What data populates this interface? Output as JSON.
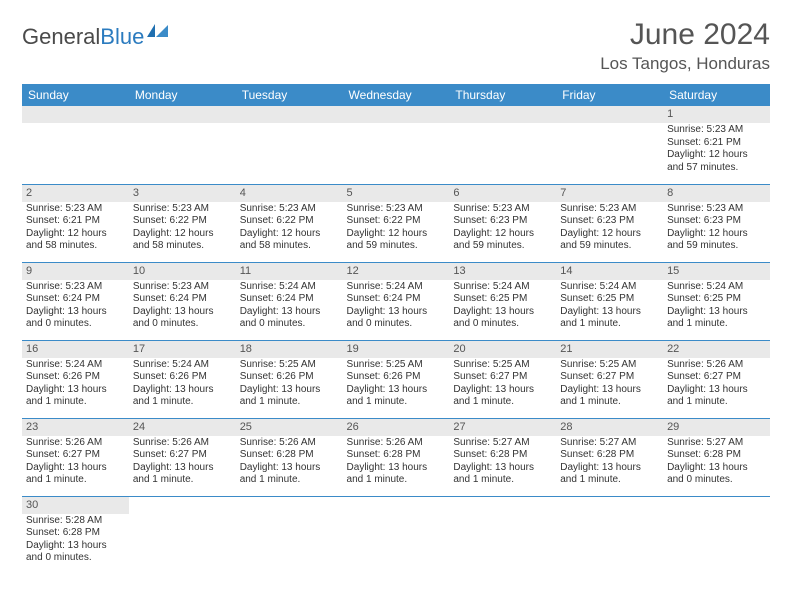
{
  "logo": {
    "text_dark": "General",
    "text_blue": "Blue"
  },
  "title": "June 2024",
  "location": "Los Tangos, Honduras",
  "colors": {
    "header_bg": "#3b8bc8",
    "header_text": "#ffffff",
    "row_border": "#3b8bc8",
    "daynum_bg": "#e9e9e9",
    "logo_blue": "#2b7bbf",
    "text": "#333333"
  },
  "day_headers": [
    "Sunday",
    "Monday",
    "Tuesday",
    "Wednesday",
    "Thursday",
    "Friday",
    "Saturday"
  ],
  "weeks": [
    [
      null,
      null,
      null,
      null,
      null,
      null,
      {
        "n": "1",
        "sunrise": "5:23 AM",
        "sunset": "6:21 PM",
        "daylight": "12 hours and 57 minutes."
      }
    ],
    [
      {
        "n": "2",
        "sunrise": "5:23 AM",
        "sunset": "6:21 PM",
        "daylight": "12 hours and 58 minutes."
      },
      {
        "n": "3",
        "sunrise": "5:23 AM",
        "sunset": "6:22 PM",
        "daylight": "12 hours and 58 minutes."
      },
      {
        "n": "4",
        "sunrise": "5:23 AM",
        "sunset": "6:22 PM",
        "daylight": "12 hours and 58 minutes."
      },
      {
        "n": "5",
        "sunrise": "5:23 AM",
        "sunset": "6:22 PM",
        "daylight": "12 hours and 59 minutes."
      },
      {
        "n": "6",
        "sunrise": "5:23 AM",
        "sunset": "6:23 PM",
        "daylight": "12 hours and 59 minutes."
      },
      {
        "n": "7",
        "sunrise": "5:23 AM",
        "sunset": "6:23 PM",
        "daylight": "12 hours and 59 minutes."
      },
      {
        "n": "8",
        "sunrise": "5:23 AM",
        "sunset": "6:23 PM",
        "daylight": "12 hours and 59 minutes."
      }
    ],
    [
      {
        "n": "9",
        "sunrise": "5:23 AM",
        "sunset": "6:24 PM",
        "daylight": "13 hours and 0 minutes."
      },
      {
        "n": "10",
        "sunrise": "5:23 AM",
        "sunset": "6:24 PM",
        "daylight": "13 hours and 0 minutes."
      },
      {
        "n": "11",
        "sunrise": "5:24 AM",
        "sunset": "6:24 PM",
        "daylight": "13 hours and 0 minutes."
      },
      {
        "n": "12",
        "sunrise": "5:24 AM",
        "sunset": "6:24 PM",
        "daylight": "13 hours and 0 minutes."
      },
      {
        "n": "13",
        "sunrise": "5:24 AM",
        "sunset": "6:25 PM",
        "daylight": "13 hours and 0 minutes."
      },
      {
        "n": "14",
        "sunrise": "5:24 AM",
        "sunset": "6:25 PM",
        "daylight": "13 hours and 1 minute."
      },
      {
        "n": "15",
        "sunrise": "5:24 AM",
        "sunset": "6:25 PM",
        "daylight": "13 hours and 1 minute."
      }
    ],
    [
      {
        "n": "16",
        "sunrise": "5:24 AM",
        "sunset": "6:26 PM",
        "daylight": "13 hours and 1 minute."
      },
      {
        "n": "17",
        "sunrise": "5:24 AM",
        "sunset": "6:26 PM",
        "daylight": "13 hours and 1 minute."
      },
      {
        "n": "18",
        "sunrise": "5:25 AM",
        "sunset": "6:26 PM",
        "daylight": "13 hours and 1 minute."
      },
      {
        "n": "19",
        "sunrise": "5:25 AM",
        "sunset": "6:26 PM",
        "daylight": "13 hours and 1 minute."
      },
      {
        "n": "20",
        "sunrise": "5:25 AM",
        "sunset": "6:27 PM",
        "daylight": "13 hours and 1 minute."
      },
      {
        "n": "21",
        "sunrise": "5:25 AM",
        "sunset": "6:27 PM",
        "daylight": "13 hours and 1 minute."
      },
      {
        "n": "22",
        "sunrise": "5:26 AM",
        "sunset": "6:27 PM",
        "daylight": "13 hours and 1 minute."
      }
    ],
    [
      {
        "n": "23",
        "sunrise": "5:26 AM",
        "sunset": "6:27 PM",
        "daylight": "13 hours and 1 minute."
      },
      {
        "n": "24",
        "sunrise": "5:26 AM",
        "sunset": "6:27 PM",
        "daylight": "13 hours and 1 minute."
      },
      {
        "n": "25",
        "sunrise": "5:26 AM",
        "sunset": "6:28 PM",
        "daylight": "13 hours and 1 minute."
      },
      {
        "n": "26",
        "sunrise": "5:26 AM",
        "sunset": "6:28 PM",
        "daylight": "13 hours and 1 minute."
      },
      {
        "n": "27",
        "sunrise": "5:27 AM",
        "sunset": "6:28 PM",
        "daylight": "13 hours and 1 minute."
      },
      {
        "n": "28",
        "sunrise": "5:27 AM",
        "sunset": "6:28 PM",
        "daylight": "13 hours and 1 minute."
      },
      {
        "n": "29",
        "sunrise": "5:27 AM",
        "sunset": "6:28 PM",
        "daylight": "13 hours and 0 minutes."
      }
    ],
    [
      {
        "n": "30",
        "sunrise": "5:28 AM",
        "sunset": "6:28 PM",
        "daylight": "13 hours and 0 minutes."
      },
      null,
      null,
      null,
      null,
      null,
      null
    ]
  ],
  "labels": {
    "sunrise": "Sunrise:",
    "sunset": "Sunset:",
    "daylight": "Daylight:"
  }
}
